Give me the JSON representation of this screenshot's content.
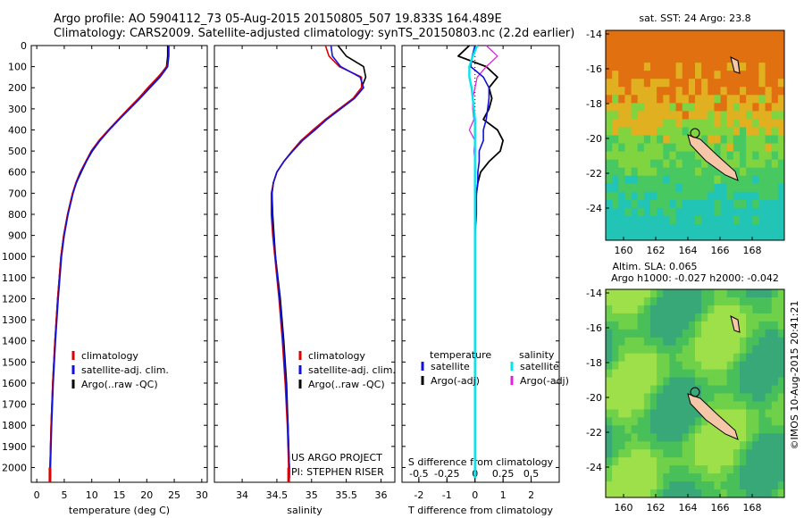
{
  "header": {
    "line1": "Argo profile: AO 5904112_73 05-Aug-2015 20150805_507 19.833S 164.489E",
    "line2": "Climatology: CARS2009. Satellite-adjusted climatology: synTS_20150803.nc (2.2d earlier)"
  },
  "credit": "©IMOS 10-Aug-2015 20:41:21",
  "project": [
    "US ARGO PROJECT",
    "PI: STEPHEN RISER"
  ],
  "colors": {
    "climatology": "#e00000",
    "satellite": "#1010e0",
    "argo": "#000000",
    "sal_sat": "#00e5ee",
    "sal_argo": "#e020e0"
  },
  "chart_data": [
    {
      "type": "line",
      "xlabel": "temperature (deg C)",
      "ylabel": "",
      "xlim": [
        -1,
        31
      ],
      "ylim": [
        2070,
        0
      ],
      "xticks": [
        "0",
        "5",
        "10",
        "15",
        "20",
        "25",
        "30"
      ],
      "yticks": [
        "0",
        "100",
        "200",
        "300",
        "400",
        "500",
        "600",
        "700",
        "800",
        "900",
        "1000",
        "1100",
        "1200",
        "1300",
        "1400",
        "1500",
        "1600",
        "1700",
        "1800",
        "1900",
        "2000"
      ],
      "legend": [
        "climatology",
        "satellite-adj. clim.",
        "Argo(..raw -QC)"
      ],
      "depth": [
        0,
        50,
        100,
        150,
        200,
        250,
        300,
        350,
        400,
        450,
        500,
        550,
        600,
        650,
        700,
        800,
        900,
        1000,
        1200,
        1400,
        1600,
        1800,
        2000,
        2050
      ],
      "series": [
        {
          "name": "climatology",
          "values": [
            24,
            24,
            23.7,
            22,
            20.2,
            18.5,
            16.6,
            14.8,
            13,
            11.3,
            9.9,
            8.9,
            7.9,
            7.1,
            6.5,
            5.6,
            4.9,
            4.4,
            3.8,
            3.3,
            2.9,
            2.6,
            2.4,
            2.4
          ]
        },
        {
          "name": "satellite-adj. clim.",
          "values": [
            24,
            24,
            23.8,
            22.4,
            20.6,
            18.8,
            16.9,
            15,
            13.2,
            11.5,
            10,
            9,
            8,
            7.2,
            6.6,
            5.7,
            5,
            4.5,
            3.9,
            3.4,
            3,
            2.7,
            2.5,
            2.5
          ]
        },
        {
          "name": "Argo(..raw -QC)",
          "values": [
            23.8,
            23.8,
            23.6,
            22.1,
            20.4,
            18.6,
            16.8,
            14.9,
            13.1,
            11.5,
            10.1,
            9,
            8.1,
            7.2,
            6.5,
            5.6,
            4.9,
            4.4,
            3.8,
            3.3,
            2.9,
            2.6,
            2.4,
            2.4
          ]
        }
      ]
    },
    {
      "type": "line",
      "xlabel": "salinity",
      "ylabel": "",
      "xlim": [
        33.6,
        36.2
      ],
      "ylim": [
        2070,
        0
      ],
      "xticks": [
        "34",
        "34.5",
        "35",
        "35.5",
        "36"
      ],
      "legend": [
        "climatology",
        "satellite-adj. clim.",
        "Argo(..raw -QC)"
      ],
      "depth": [
        0,
        50,
        100,
        150,
        200,
        250,
        300,
        350,
        400,
        450,
        500,
        550,
        600,
        650,
        700,
        800,
        900,
        1000,
        1200,
        1400,
        1600,
        1800,
        2000,
        2050
      ],
      "series": [
        {
          "name": "climatology",
          "values": [
            35.2,
            35.25,
            35.4,
            35.72,
            35.72,
            35.6,
            35.4,
            35.2,
            35.02,
            34.85,
            34.72,
            34.6,
            34.5,
            34.45,
            34.42,
            34.42,
            34.44,
            34.47,
            34.53,
            34.58,
            34.62,
            34.65,
            34.67,
            34.67
          ]
        },
        {
          "name": "satellite-adj. clim.",
          "values": [
            35.28,
            35.3,
            35.42,
            35.7,
            35.75,
            35.62,
            35.42,
            35.22,
            35.05,
            34.87,
            34.73,
            34.6,
            34.5,
            34.45,
            34.43,
            34.43,
            34.45,
            34.48,
            34.54,
            34.59,
            34.63,
            34.66,
            34.68,
            34.68
          ]
        },
        {
          "name": "Argo(..raw -QC)",
          "values": [
            35.38,
            35.5,
            35.75,
            35.78,
            35.72,
            35.6,
            35.4,
            35.2,
            35.03,
            34.85,
            34.72,
            34.6,
            34.5,
            34.45,
            34.43,
            34.44,
            34.46,
            34.48,
            34.55,
            34.6,
            34.64,
            34.66,
            34.68,
            34.68
          ]
        }
      ]
    },
    {
      "type": "line",
      "xlabel": "T difference from climatology",
      "title": "S difference from climatology",
      "xlim": [
        -2.6,
        3
      ],
      "ylim": [
        2070,
        0
      ],
      "xticks": [
        "-2",
        "-1",
        "0",
        "1",
        "2"
      ],
      "sticks": [
        "-0.5",
        "-0.25",
        "0",
        "0.25",
        "0.5"
      ],
      "legend_t": [
        "temperature",
        "satellite",
        "Argo(-adj)"
      ],
      "legend_s": [
        "salinity",
        "satellite",
        "Argo(-adj)"
      ],
      "depth": [
        0,
        50,
        100,
        150,
        200,
        250,
        300,
        350,
        400,
        450,
        500,
        550,
        600,
        650,
        700,
        800,
        900,
        1000,
        1200,
        1400,
        1600,
        1800,
        2000,
        2050
      ],
      "series": [
        {
          "name": "T satellite",
          "values": [
            0,
            -0.1,
            -0.15,
            0.3,
            0.5,
            0.5,
            0.45,
            0.4,
            0.3,
            0.3,
            0.15,
            0.15,
            0.1,
            0.1,
            0.05,
            0.05,
            0,
            0,
            0,
            0,
            0,
            0,
            0,
            0
          ]
        },
        {
          "name": "T Argo(-adj)",
          "values": [
            -0.2,
            -0.6,
            0.4,
            0.8,
            0.5,
            0.6,
            0.5,
            0.3,
            0.8,
            1.0,
            0.9,
            0.5,
            0.2,
            0.1,
            0.05,
            0,
            0,
            0,
            0,
            0,
            0,
            0,
            0,
            0
          ]
        },
        {
          "name": "S satellite",
          "values": [
            0.02,
            -0.02,
            -0.05,
            -0.05,
            -0.03,
            -0.02,
            -0.01,
            0,
            0,
            0,
            0,
            0,
            0,
            0,
            0,
            0,
            0,
            0,
            0,
            0,
            0,
            0,
            0,
            0
          ]
        },
        {
          "name": "S Argo(-adj)",
          "values": [
            0.1,
            0.2,
            0.1,
            0.02,
            0,
            -0.02,
            -0.02,
            -0.01,
            -0.05,
            0,
            -0.01,
            0,
            0,
            0,
            0,
            0,
            0,
            0,
            0,
            0,
            0,
            0,
            0,
            0
          ]
        }
      ]
    },
    {
      "type": "heatmap",
      "title": "sat. SST: 24  Argo: 23.8",
      "xticks": [
        "160",
        "162",
        "164",
        "166",
        "168"
      ],
      "yticks": [
        "-14",
        "-16",
        "-18",
        "-20",
        "-22",
        "-24"
      ]
    },
    {
      "type": "heatmap",
      "title": [
        "Altim. SLA: 0.065",
        "Argo h1000: -0.027 h2000: -0.042"
      ],
      "xticks": [
        "160",
        "162",
        "164",
        "166",
        "168"
      ],
      "yticks": [
        "-14",
        "-16",
        "-18",
        "-20",
        "-22",
        "-24"
      ]
    }
  ]
}
